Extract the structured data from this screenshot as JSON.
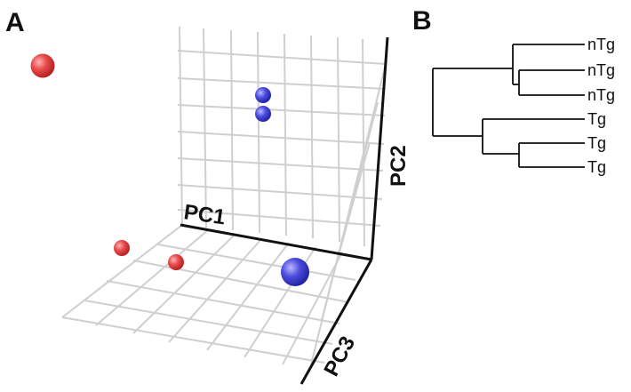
{
  "panels": {
    "a_label": "A",
    "b_label": "B"
  },
  "chart_data": [
    {
      "type": "scatter",
      "projection": "3d",
      "axes": [
        "PC1",
        "PC2",
        "PC3"
      ],
      "grid": true,
      "points": [
        {
          "group": "red",
          "color": "#dd3b3b",
          "size": "large"
        },
        {
          "group": "red",
          "color": "#dd3b3b",
          "size": "small"
        },
        {
          "group": "red",
          "color": "#dd3b3b",
          "size": "small"
        },
        {
          "group": "blue",
          "color": "#4a4ad8",
          "size": "small"
        },
        {
          "group": "blue",
          "color": "#4a4ad8",
          "size": "small"
        },
        {
          "group": "blue",
          "color": "#4a4ad8",
          "size": "large"
        }
      ]
    },
    {
      "type": "dendrogram",
      "leaves": [
        "nTg",
        "nTg",
        "nTg",
        "Tg",
        "Tg",
        "Tg"
      ],
      "clusters": [
        [
          "nTg",
          "nTg",
          "nTg"
        ],
        [
          "Tg",
          "Tg",
          "Tg"
        ]
      ]
    }
  ]
}
